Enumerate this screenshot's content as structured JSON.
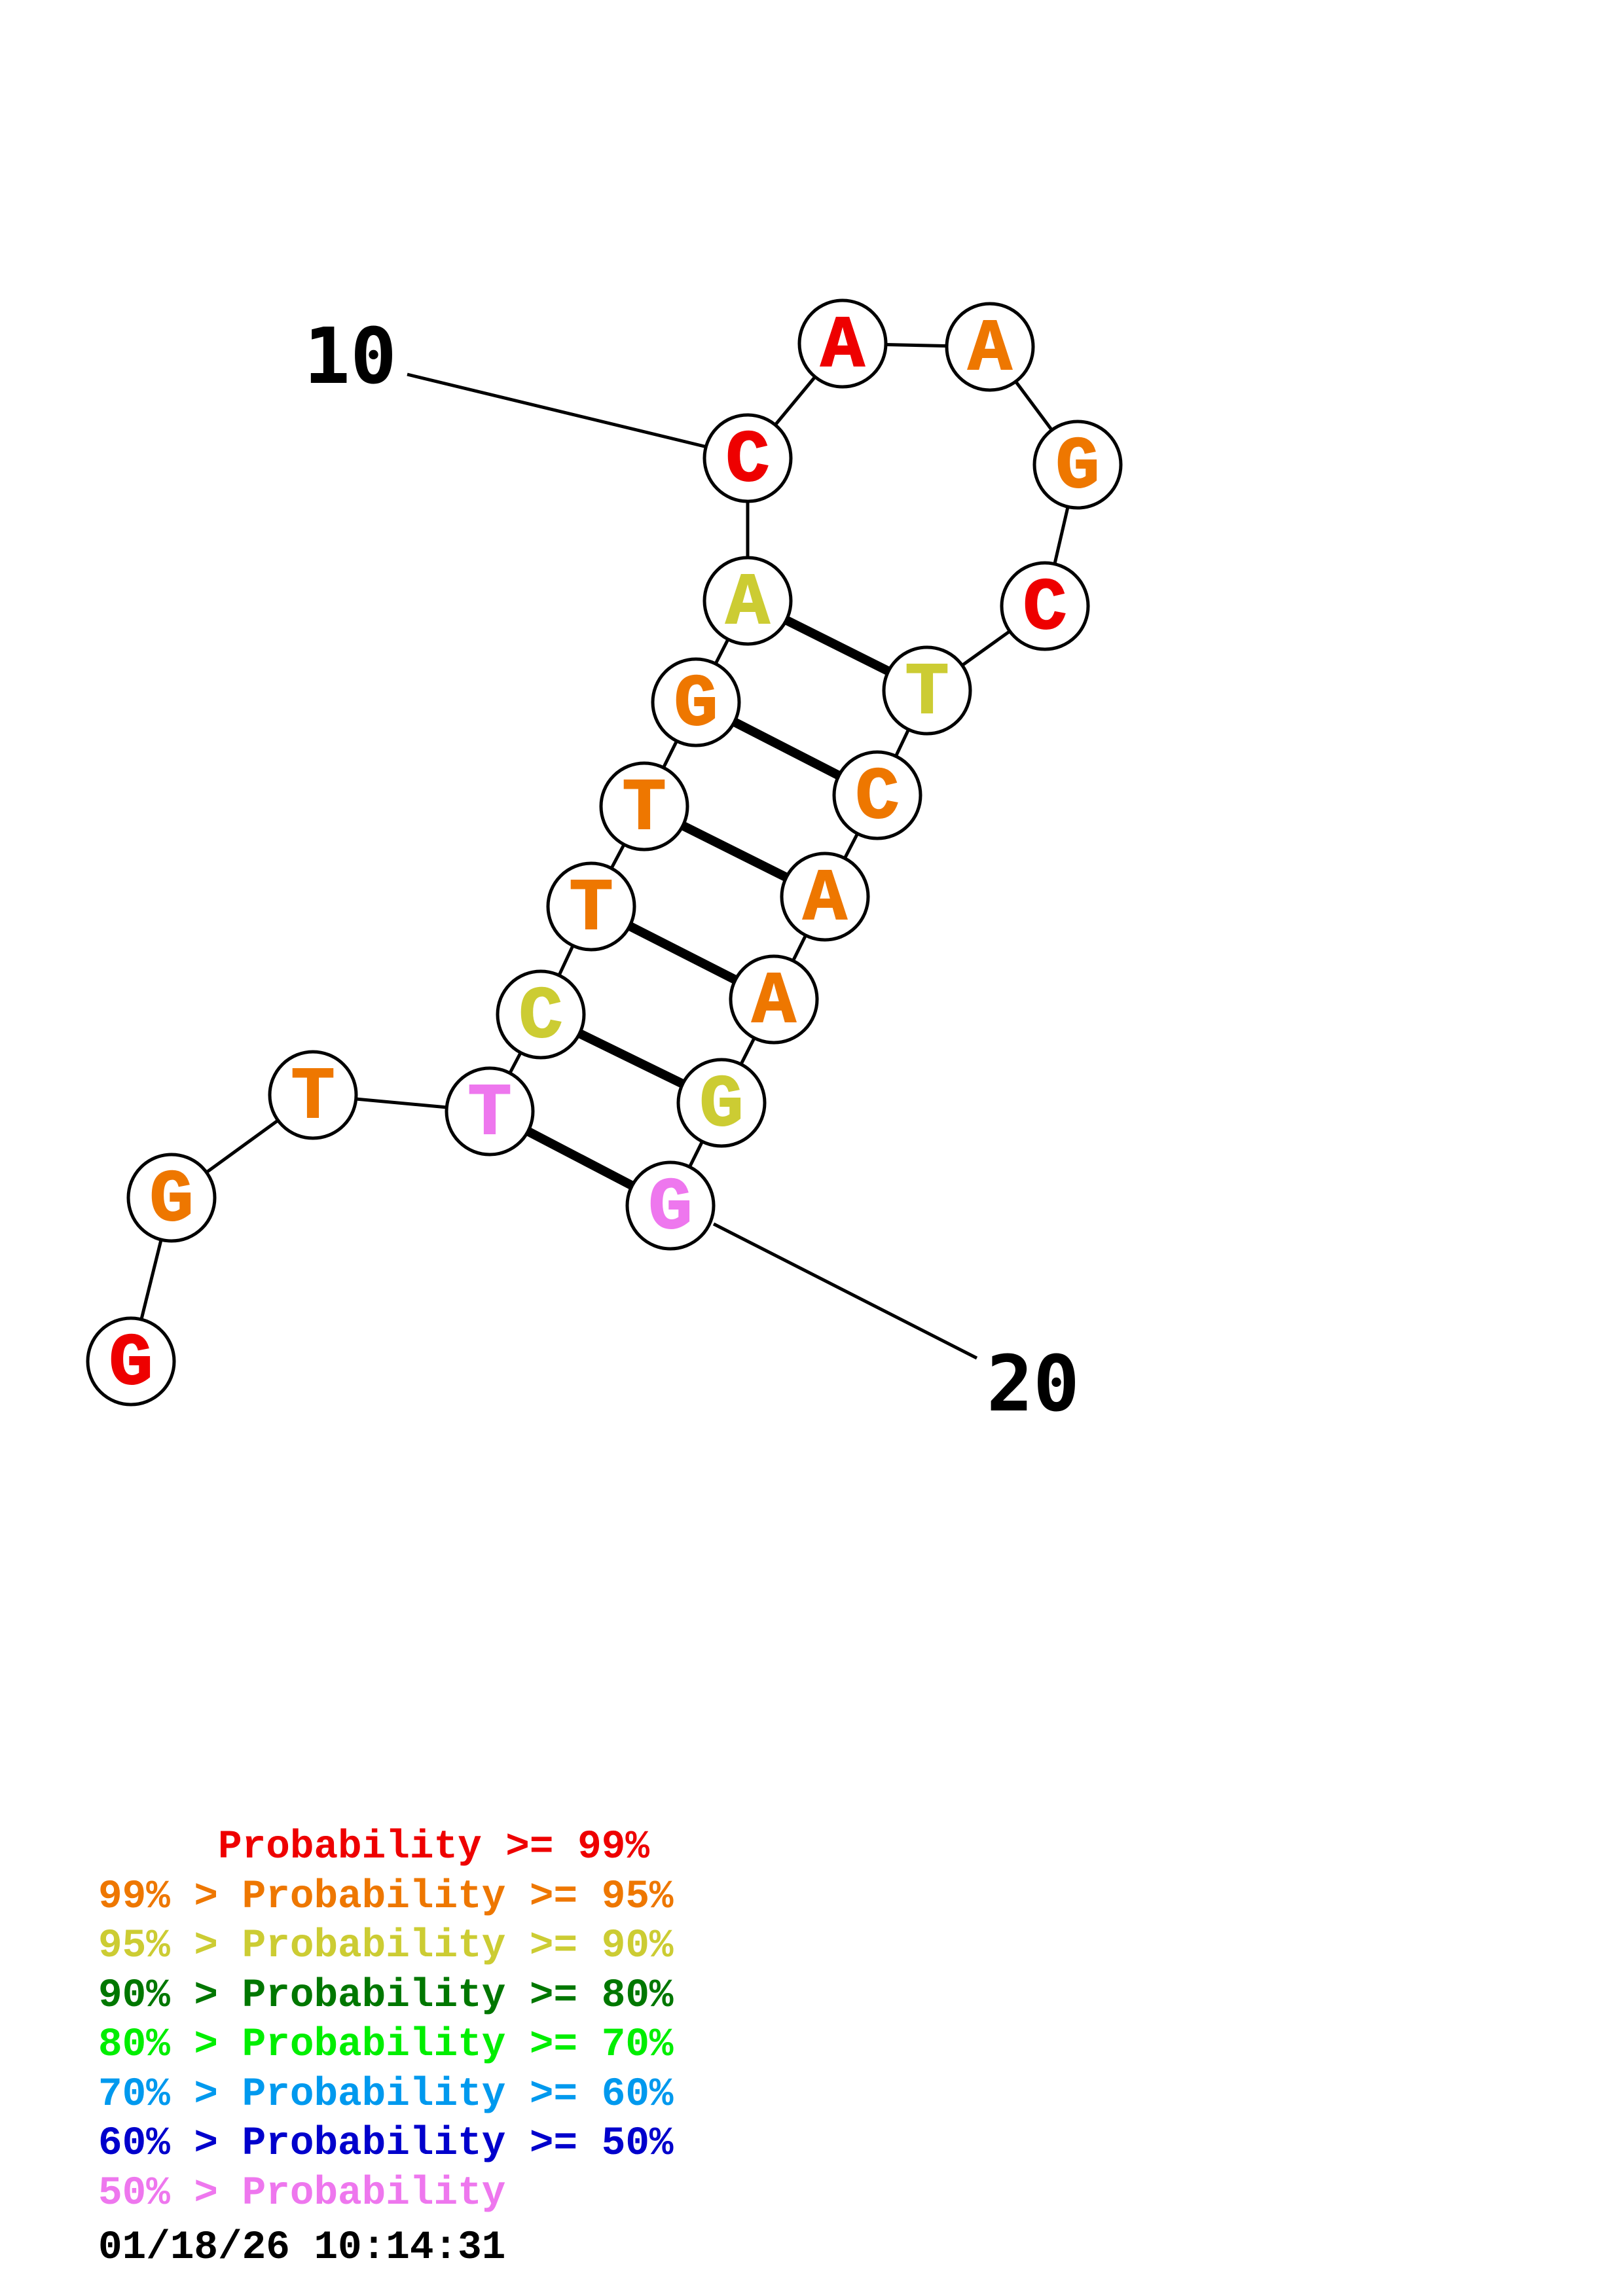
{
  "structure": {
    "nucleotides": [
      {
        "index": 1,
        "base": "G",
        "color": "#ee0000"
      },
      {
        "index": 2,
        "base": "G",
        "color": "#ee7700"
      },
      {
        "index": 3,
        "base": "T",
        "color": "#ee7700"
      },
      {
        "index": 4,
        "base": "T",
        "color": "#ee77ee"
      },
      {
        "index": 5,
        "base": "C",
        "color": "#cccc33"
      },
      {
        "index": 6,
        "base": "T",
        "color": "#ee7700"
      },
      {
        "index": 7,
        "base": "T",
        "color": "#ee7700"
      },
      {
        "index": 8,
        "base": "G",
        "color": "#ee7700"
      },
      {
        "index": 9,
        "base": "A",
        "color": "#cccc33"
      },
      {
        "index": 10,
        "base": "C",
        "color": "#ee0000"
      },
      {
        "index": 11,
        "base": "A",
        "color": "#ee0000"
      },
      {
        "index": 12,
        "base": "A",
        "color": "#ee7700"
      },
      {
        "index": 13,
        "base": "G",
        "color": "#ee7700"
      },
      {
        "index": 14,
        "base": "C",
        "color": "#ee0000"
      },
      {
        "index": 15,
        "base": "T",
        "color": "#cccc33"
      },
      {
        "index": 16,
        "base": "C",
        "color": "#ee7700"
      },
      {
        "index": 17,
        "base": "A",
        "color": "#ee7700"
      },
      {
        "index": 18,
        "base": "A",
        "color": "#ee7700"
      },
      {
        "index": 19,
        "base": "G",
        "color": "#cccc33"
      },
      {
        "index": 20,
        "base": "G",
        "color": "#ee77ee"
      }
    ],
    "pairs": [
      [
        4,
        20
      ],
      [
        5,
        19
      ],
      [
        6,
        18
      ],
      [
        7,
        17
      ],
      [
        8,
        16
      ],
      [
        9,
        15
      ]
    ],
    "position_labels": [
      {
        "text": "10",
        "index": 10
      },
      {
        "text": "20",
        "index": 20
      }
    ]
  },
  "legend": {
    "rows": [
      {
        "text": "     Probability >= 99%",
        "color": "#ee0000"
      },
      {
        "text": "99% > Probability >= 95%",
        "color": "#ee7700"
      },
      {
        "text": "95% > Probability >= 90%",
        "color": "#cccc33"
      },
      {
        "text": "90% > Probability >= 80%",
        "color": "#007700"
      },
      {
        "text": "80% > Probability >= 70%",
        "color": "#00ee00"
      },
      {
        "text": "70% > Probability >= 60%",
        "color": "#0099ee"
      },
      {
        "text": "60% > Probability >= 50%",
        "color": "#0000cc"
      },
      {
        "text": "50% > Probability",
        "color": "#ee77ee"
      }
    ]
  },
  "timestamp": "01/18/26 10:14:31"
}
